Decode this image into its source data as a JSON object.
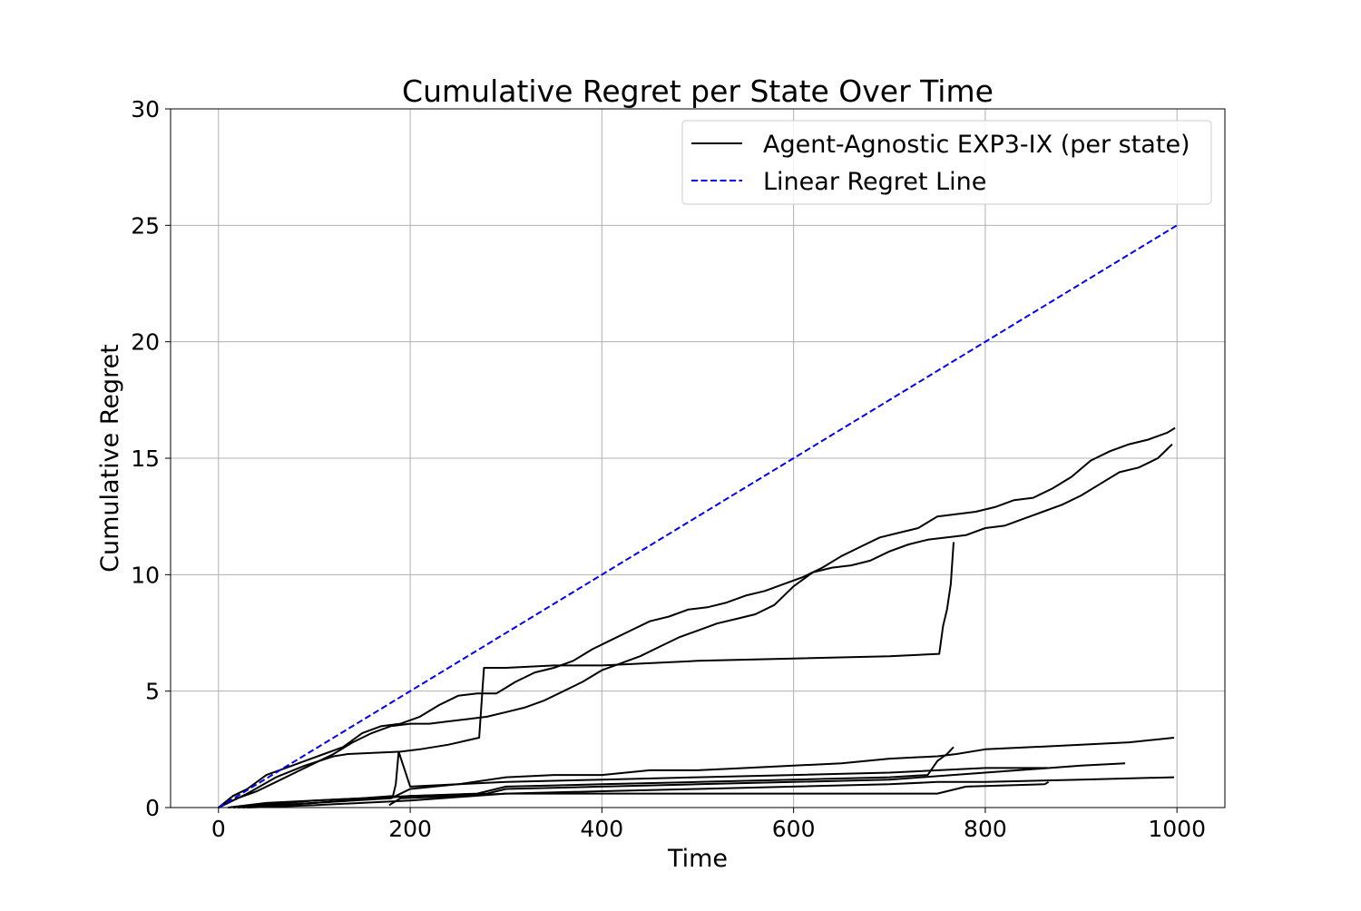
{
  "chart_data": {
    "type": "line",
    "title": "Cumulative Regret per State Over Time",
    "xlabel": "Time",
    "ylabel": "Cumulative Regret",
    "xlim": [
      -50,
      1050
    ],
    "ylim": [
      0,
      30
    ],
    "xticks": [
      0,
      200,
      400,
      600,
      800,
      1000
    ],
    "yticks": [
      0,
      5,
      10,
      15,
      20,
      25,
      30
    ],
    "grid": true,
    "legend_position": "top-right",
    "legend": [
      {
        "label": "Agent-Agnostic EXP3-IX (per state)",
        "color": "#000000",
        "style": "solid"
      },
      {
        "label": "Linear Regret Line",
        "color": "#0000ff",
        "style": "dashed"
      }
    ],
    "series": [
      {
        "group": "Agent-Agnostic EXP3-IX (per state)",
        "color": "#000000",
        "style": "solid",
        "x": [
          0,
          15,
          30,
          50,
          70,
          90,
          110,
          130,
          150,
          170,
          190,
          210,
          230,
          250,
          270,
          290,
          310,
          330,
          350,
          370,
          390,
          410,
          430,
          450,
          470,
          490,
          510,
          530,
          550,
          570,
          590,
          610,
          630,
          650,
          670,
          690,
          710,
          730,
          750,
          770,
          790,
          810,
          830,
          850,
          870,
          890,
          910,
          930,
          950,
          970,
          990,
          998
        ],
        "y": [
          0.0,
          0.5,
          0.8,
          1.4,
          1.7,
          2.0,
          2.3,
          2.6,
          3.2,
          3.5,
          3.6,
          3.9,
          4.4,
          4.8,
          4.9,
          4.9,
          5.4,
          5.8,
          6.0,
          6.3,
          6.8,
          7.2,
          7.6,
          8.0,
          8.2,
          8.5,
          8.6,
          8.8,
          9.1,
          9.3,
          9.6,
          9.9,
          10.3,
          10.8,
          11.2,
          11.6,
          11.8,
          12.0,
          12.5,
          12.6,
          12.7,
          12.9,
          13.2,
          13.3,
          13.7,
          14.2,
          14.9,
          15.3,
          15.6,
          15.8,
          16.1,
          16.3
        ]
      },
      {
        "group": "Agent-Agnostic EXP3-IX (per state)",
        "color": "#000000",
        "style": "solid",
        "x": [
          0,
          20,
          40,
          60,
          80,
          100,
          120,
          140,
          160,
          180,
          200,
          220,
          240,
          260,
          280,
          300,
          320,
          340,
          360,
          380,
          400,
          420,
          440,
          460,
          480,
          500,
          520,
          540,
          560,
          580,
          600,
          620,
          640,
          660,
          680,
          700,
          720,
          740,
          760,
          780,
          800,
          820,
          840,
          860,
          880,
          900,
          920,
          940,
          960,
          980,
          995
        ],
        "y": [
          0.0,
          0.4,
          0.7,
          1.1,
          1.5,
          1.9,
          2.3,
          2.8,
          3.2,
          3.5,
          3.6,
          3.6,
          3.7,
          3.8,
          3.9,
          4.1,
          4.3,
          4.6,
          5.0,
          5.4,
          5.9,
          6.2,
          6.5,
          6.9,
          7.3,
          7.6,
          7.9,
          8.1,
          8.3,
          8.7,
          9.5,
          10.1,
          10.3,
          10.4,
          10.6,
          11.0,
          11.3,
          11.5,
          11.6,
          11.7,
          12.0,
          12.1,
          12.4,
          12.7,
          13.0,
          13.4,
          13.9,
          14.4,
          14.6,
          15.0,
          15.6
        ]
      },
      {
        "group": "Agent-Agnostic EXP3-IX (per state)",
        "color": "#000000",
        "style": "solid",
        "x": [
          0,
          30,
          60,
          90,
          120,
          135,
          190,
          210,
          240,
          272,
          277,
          300,
          350,
          400,
          500,
          600,
          700,
          752,
          756,
          760,
          764,
          767
        ],
        "y": [
          0.0,
          0.6,
          1.3,
          1.8,
          2.2,
          2.3,
          2.4,
          2.5,
          2.7,
          3.0,
          6.0,
          6.0,
          6.1,
          6.1,
          6.3,
          6.4,
          6.5,
          6.6,
          7.8,
          8.5,
          9.6,
          11.4
        ]
      },
      {
        "group": "Agent-Agnostic EXP3-IX (per state)",
        "color": "#000000",
        "style": "solid",
        "x": [
          10,
          50,
          100,
          150,
          182,
          185,
          188,
          200,
          250,
          300,
          350,
          400,
          450,
          500,
          550,
          600,
          650,
          700,
          750,
          770,
          800,
          850,
          900,
          950,
          997
        ],
        "y": [
          0.0,
          0.2,
          0.3,
          0.4,
          0.5,
          1.0,
          2.4,
          0.9,
          1.0,
          1.3,
          1.4,
          1.4,
          1.6,
          1.6,
          1.7,
          1.8,
          1.9,
          2.1,
          2.2,
          2.3,
          2.5,
          2.6,
          2.7,
          2.8,
          3.0
        ]
      },
      {
        "group": "Agent-Agnostic EXP3-IX (per state)",
        "color": "#000000",
        "style": "solid",
        "x": [
          15,
          100,
          200,
          270,
          300,
          400,
          500,
          600,
          700,
          740,
          750,
          760,
          767
        ],
        "y": [
          0.0,
          0.3,
          0.5,
          0.6,
          0.9,
          1.0,
          1.1,
          1.2,
          1.3,
          1.4,
          2.0,
          2.3,
          2.6
        ]
      },
      {
        "group": "Agent-Agnostic EXP3-IX (per state)",
        "color": "#000000",
        "style": "solid",
        "x": [
          20,
          100,
          180,
          200,
          250,
          300,
          400,
          500,
          600,
          700,
          800,
          865
        ],
        "y": [
          0.0,
          0.2,
          0.4,
          0.8,
          1.0,
          1.1,
          1.2,
          1.3,
          1.4,
          1.5,
          1.7,
          1.7
        ]
      },
      {
        "group": "Agent-Agnostic EXP3-IX (per state)",
        "color": "#000000",
        "style": "solid",
        "x": [
          25,
          100,
          200,
          280,
          300,
          400,
          500,
          600,
          700,
          800,
          900,
          946
        ],
        "y": [
          0.0,
          0.2,
          0.5,
          0.6,
          0.8,
          0.9,
          1.0,
          1.1,
          1.2,
          1.5,
          1.8,
          1.9
        ]
      },
      {
        "group": "Agent-Agnostic EXP3-IX (per state)",
        "color": "#000000",
        "style": "solid",
        "x": [
          30,
          100,
          200,
          300,
          400,
          500,
          600,
          700,
          750,
          800,
          900,
          997
        ],
        "y": [
          0.0,
          0.1,
          0.3,
          0.6,
          0.7,
          0.8,
          0.9,
          1.0,
          1.1,
          1.1,
          1.2,
          1.3
        ]
      },
      {
        "group": "Agent-Agnostic EXP3-IX (per state)",
        "color": "#000000",
        "style": "solid",
        "x": [
          178,
          190,
          250,
          300,
          400,
          500,
          600,
          700,
          750,
          780,
          862,
          866
        ],
        "y": [
          0.1,
          0.4,
          0.5,
          0.6,
          0.6,
          0.6,
          0.6,
          0.6,
          0.6,
          0.9,
          1.0,
          1.1
        ]
      },
      {
        "group": "Linear Regret Line",
        "color": "#0000ff",
        "style": "dashed",
        "x": [
          0,
          1000
        ],
        "y": [
          0,
          25
        ]
      }
    ]
  }
}
